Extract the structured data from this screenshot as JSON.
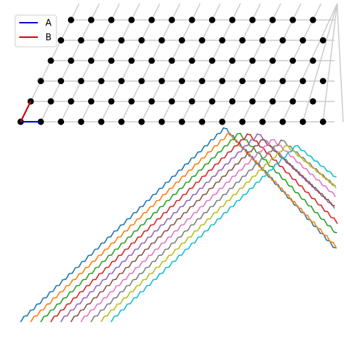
{
  "chart_data": {
    "type": "scatter",
    "lattice": {
      "rows": 6,
      "a1": [
        1,
        0
      ],
      "a2": [
        0.5,
        1
      ],
      "x_range": [
        0,
        16
      ]
    },
    "vectors": [
      {
        "name": "A",
        "from": [
          0,
          0
        ],
        "to": [
          1,
          0
        ],
        "color": "#0000cc"
      },
      {
        "name": "B",
        "from": [
          0,
          0
        ],
        "to": [
          0.5,
          1
        ],
        "color": "#cc0000"
      }
    ],
    "legend": {
      "position": "top-left",
      "entries": [
        {
          "label": "A",
          "color": "#0000cc"
        },
        {
          "label": "B",
          "color": "#cc0000"
        }
      ]
    },
    "grid_color": "#cccccc",
    "point_color": "#000000",
    "wave_colors": [
      "#1f77b4",
      "#ff7f0e",
      "#2ca02c",
      "#d62728",
      "#9467bd",
      "#8c564b",
      "#e377c2",
      "#7f7f7f",
      "#bcbd22",
      "#17becf"
    ],
    "wave_count": 10
  }
}
